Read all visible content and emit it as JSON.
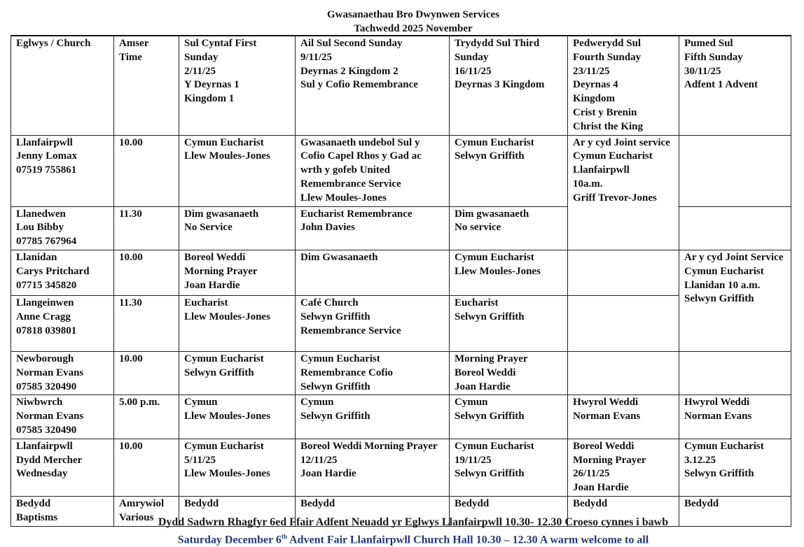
{
  "title": "Gwasanaethau Bro Dwynwen Services",
  "subtitle": "Tachwedd 2025 November",
  "headers": [
    "Eglwys / Church",
    "Amser\nTime",
    "Sul Cyntaf First\nSunday\n2/11/25\nY Deyrnas 1\nKingdom 1",
    "Ail Sul Second Sunday\n9/11/25\nDeyrnas 2 Kingdom 2\nSul y Cofio Remembrance",
    "Trydydd Sul Third\nSunday\n16/11/25\nDeyrnas 3 Kingdom",
    "Pedwerydd Sul\nFourth Sunday\n23/11/25\nDeyrnas 4\nKingdom\nCrist y Brenin\nChrist the King",
    "Pumed Sul\nFifth Sunday\n30/11/25\nAdfent 1 Advent"
  ],
  "rows": [
    {
      "church": "Llanfairpwll\nJenny Lomax\n07519 755861",
      "time": "10.00",
      "c1": "Cymun Eucharist\nLlew Moules-Jones",
      "c2": "Gwasanaeth undebol Sul y Cofio Capel Rhos y Gad ac wrth y gofeb  United Remembrance Service\nLlew Moules-Jones",
      "c3": "Cymun Eucharist\nSelwyn Griffith",
      "c4": "Ar y cyd   Joint service\nCymun Eucharist\nLlanfairpwll\n10a.m.\nGriff Trevor-Jones",
      "c5": ""
    },
    {
      "church": "Llanedwen\nLou Bibby\n07785 767964",
      "time": "11.30",
      "c1": "Dim gwasanaeth\nNo Service",
      "c2": "Eucharist Remembrance\nJohn Davies",
      "c3": "Dim gwasanaeth\nNo service",
      "c5": ""
    },
    {
      "church": "Llanidan\nCarys Pritchard\n07715 345820",
      "time": "10.00",
      "c1": "Boreol Weddi\nMorning Prayer\nJoan Hardie",
      "c2": "Dim Gwasanaeth",
      "c3": "Cymun Eucharist\nLlew Moules-Jones",
      "c4": "",
      "c5": "Ar y cyd  Joint Service Cymun Eucharist\nLlanidan 10 a.m.\nSelwyn Griffith"
    },
    {
      "church": "Llangeinwen\nAnne Cragg\n07818 039801",
      "time": "11.30",
      "c1": "Eucharist\nLlew Moules-Jones",
      "c2": "Café Church\nSelwyn Griffith\nRemembrance Service",
      "c3": "Eucharist\nSelwyn Griffith",
      "c4": ""
    },
    {
      "church": "Newborough\nNorman Evans\n07585 320490",
      "time": "10.00",
      "c1": "Cymun Eucharist\nSelwyn Griffith",
      "c2": "Cymun Eucharist\nRemembrance  Cofio\nSelwyn Griffith",
      "c3": "Morning Prayer\nBoreol Weddi\nJoan Hardie",
      "c4": "",
      "c5": ""
    },
    {
      "church": "Niwbwrch\nNorman Evans\n07585 320490",
      "time": "5.00 p.m.",
      "c1": "Cymun\nLlew Moules-Jones",
      "c2": "Cymun\nSelwyn Griffith",
      "c3": "Cymun\nSelwyn Griffith",
      "c4": "Hwyrol Weddi\nNorman Evans",
      "c5": "Hwyrol Weddi\nNorman Evans"
    },
    {
      "church": "Llanfairpwll\nDydd Mercher\nWednesday",
      "time": "10.00",
      "c1": "Cymun Eucharist\n5/11/25\nLlew Moules-Jones",
      "c2": "Boreol Weddi Morning Prayer 12/11/25\nJoan Hardie",
      "c3": "Cymun Eucharist\n19/11/25\nSelwyn Griffith",
      "c4": "Boreol Weddi\nMorning Prayer\n26/11/25\nJoan Hardie",
      "c5": "Cymun Eucharist\n3.12.25\nSelwyn Griffith"
    },
    {
      "church": "Bedydd\nBaptisms",
      "time": "Amrywiol\nVarious",
      "c1": "Bedydd",
      "c2": "Bedydd",
      "c3": "Bedydd",
      "c4": "Bedydd",
      "c5": "Bedydd"
    }
  ],
  "footer": {
    "welsh": "Dydd Sadwrn Rhagfyr 6ed  Ffair Adfent Neuadd yr Eglwys Llanfairpwll 10.30- 12.30 Croeso cynnes i bawb",
    "english_pre": "Saturday December 6",
    "english_sup": "th",
    "english_post": "  Advent Fair Llanfairpwll Church Hall 10.30 – 12.30 A warm welcome to all"
  },
  "colors": {
    "footer_english": "#1f3a78",
    "text": "#111111"
  }
}
